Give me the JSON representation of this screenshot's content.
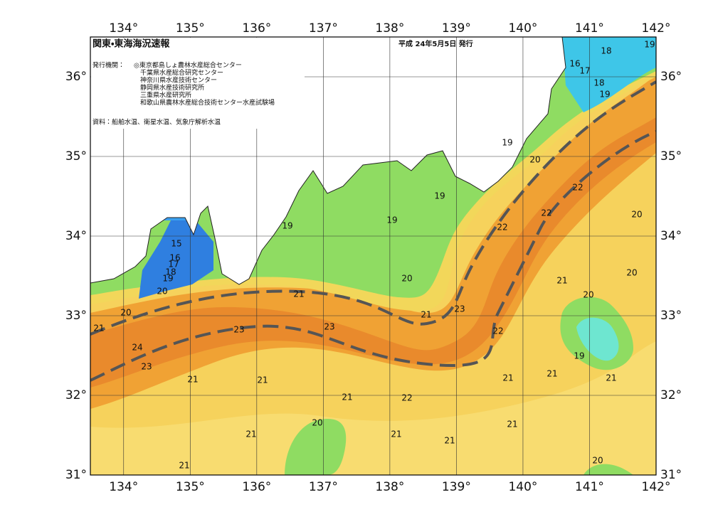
{
  "header": {
    "title": "関東・東海海況速報",
    "date": "平成 24年5月5日 発行"
  },
  "issuers": {
    "label": "発行機関：",
    "list": [
      "◎東京都島しょ農林水産総合センター",
      "千葉県水産総合研究センター",
      "神奈川県水産技術センター",
      "静岡県水産技術研究所",
      "三重県水産研究所",
      "和歌山県農林水産総合技術センター水産試験場"
    ]
  },
  "source": "資料：船舶水温、衛星水温、気象庁解析水温",
  "map": {
    "lonlim": [
      133.5,
      142
    ],
    "latlim": [
      31,
      36.5
    ],
    "lon_ticks": [
      {
        "value": 134,
        "label": "134°"
      },
      {
        "value": 135,
        "label": "135°"
      },
      {
        "value": 136,
        "label": "136°"
      },
      {
        "value": 137,
        "label": "137°"
      },
      {
        "value": 138,
        "label": "138°"
      },
      {
        "value": 139,
        "label": "139°"
      },
      {
        "value": 140,
        "label": "140°"
      },
      {
        "value": 141,
        "label": "141°"
      },
      {
        "value": 142,
        "label": "142°"
      }
    ],
    "lat_ticks": [
      {
        "value": 31,
        "label": "31°"
      },
      {
        "value": 32,
        "label": "32°"
      },
      {
        "value": 33,
        "label": "33°"
      },
      {
        "value": 34,
        "label": "34°"
      },
      {
        "value": 35,
        "label": "35°"
      },
      {
        "value": 36,
        "label": "36°"
      }
    ]
  },
  "contour_labels": [
    "18",
    "19",
    "16",
    "17",
    "18",
    "19",
    "19",
    "20",
    "22",
    "19",
    "22",
    "20",
    "19",
    "19",
    "22",
    "15",
    "16",
    "17",
    "18",
    "19",
    "20",
    "20",
    "21",
    "20",
    "21",
    "20",
    "20",
    "23",
    "21",
    "21",
    "23",
    "23",
    "22",
    "24",
    "19",
    "23",
    "21",
    "21",
    "21",
    "21",
    "21",
    "21",
    "22",
    "20",
    "21",
    "21",
    "21",
    "21",
    "20",
    "21"
  ]
}
